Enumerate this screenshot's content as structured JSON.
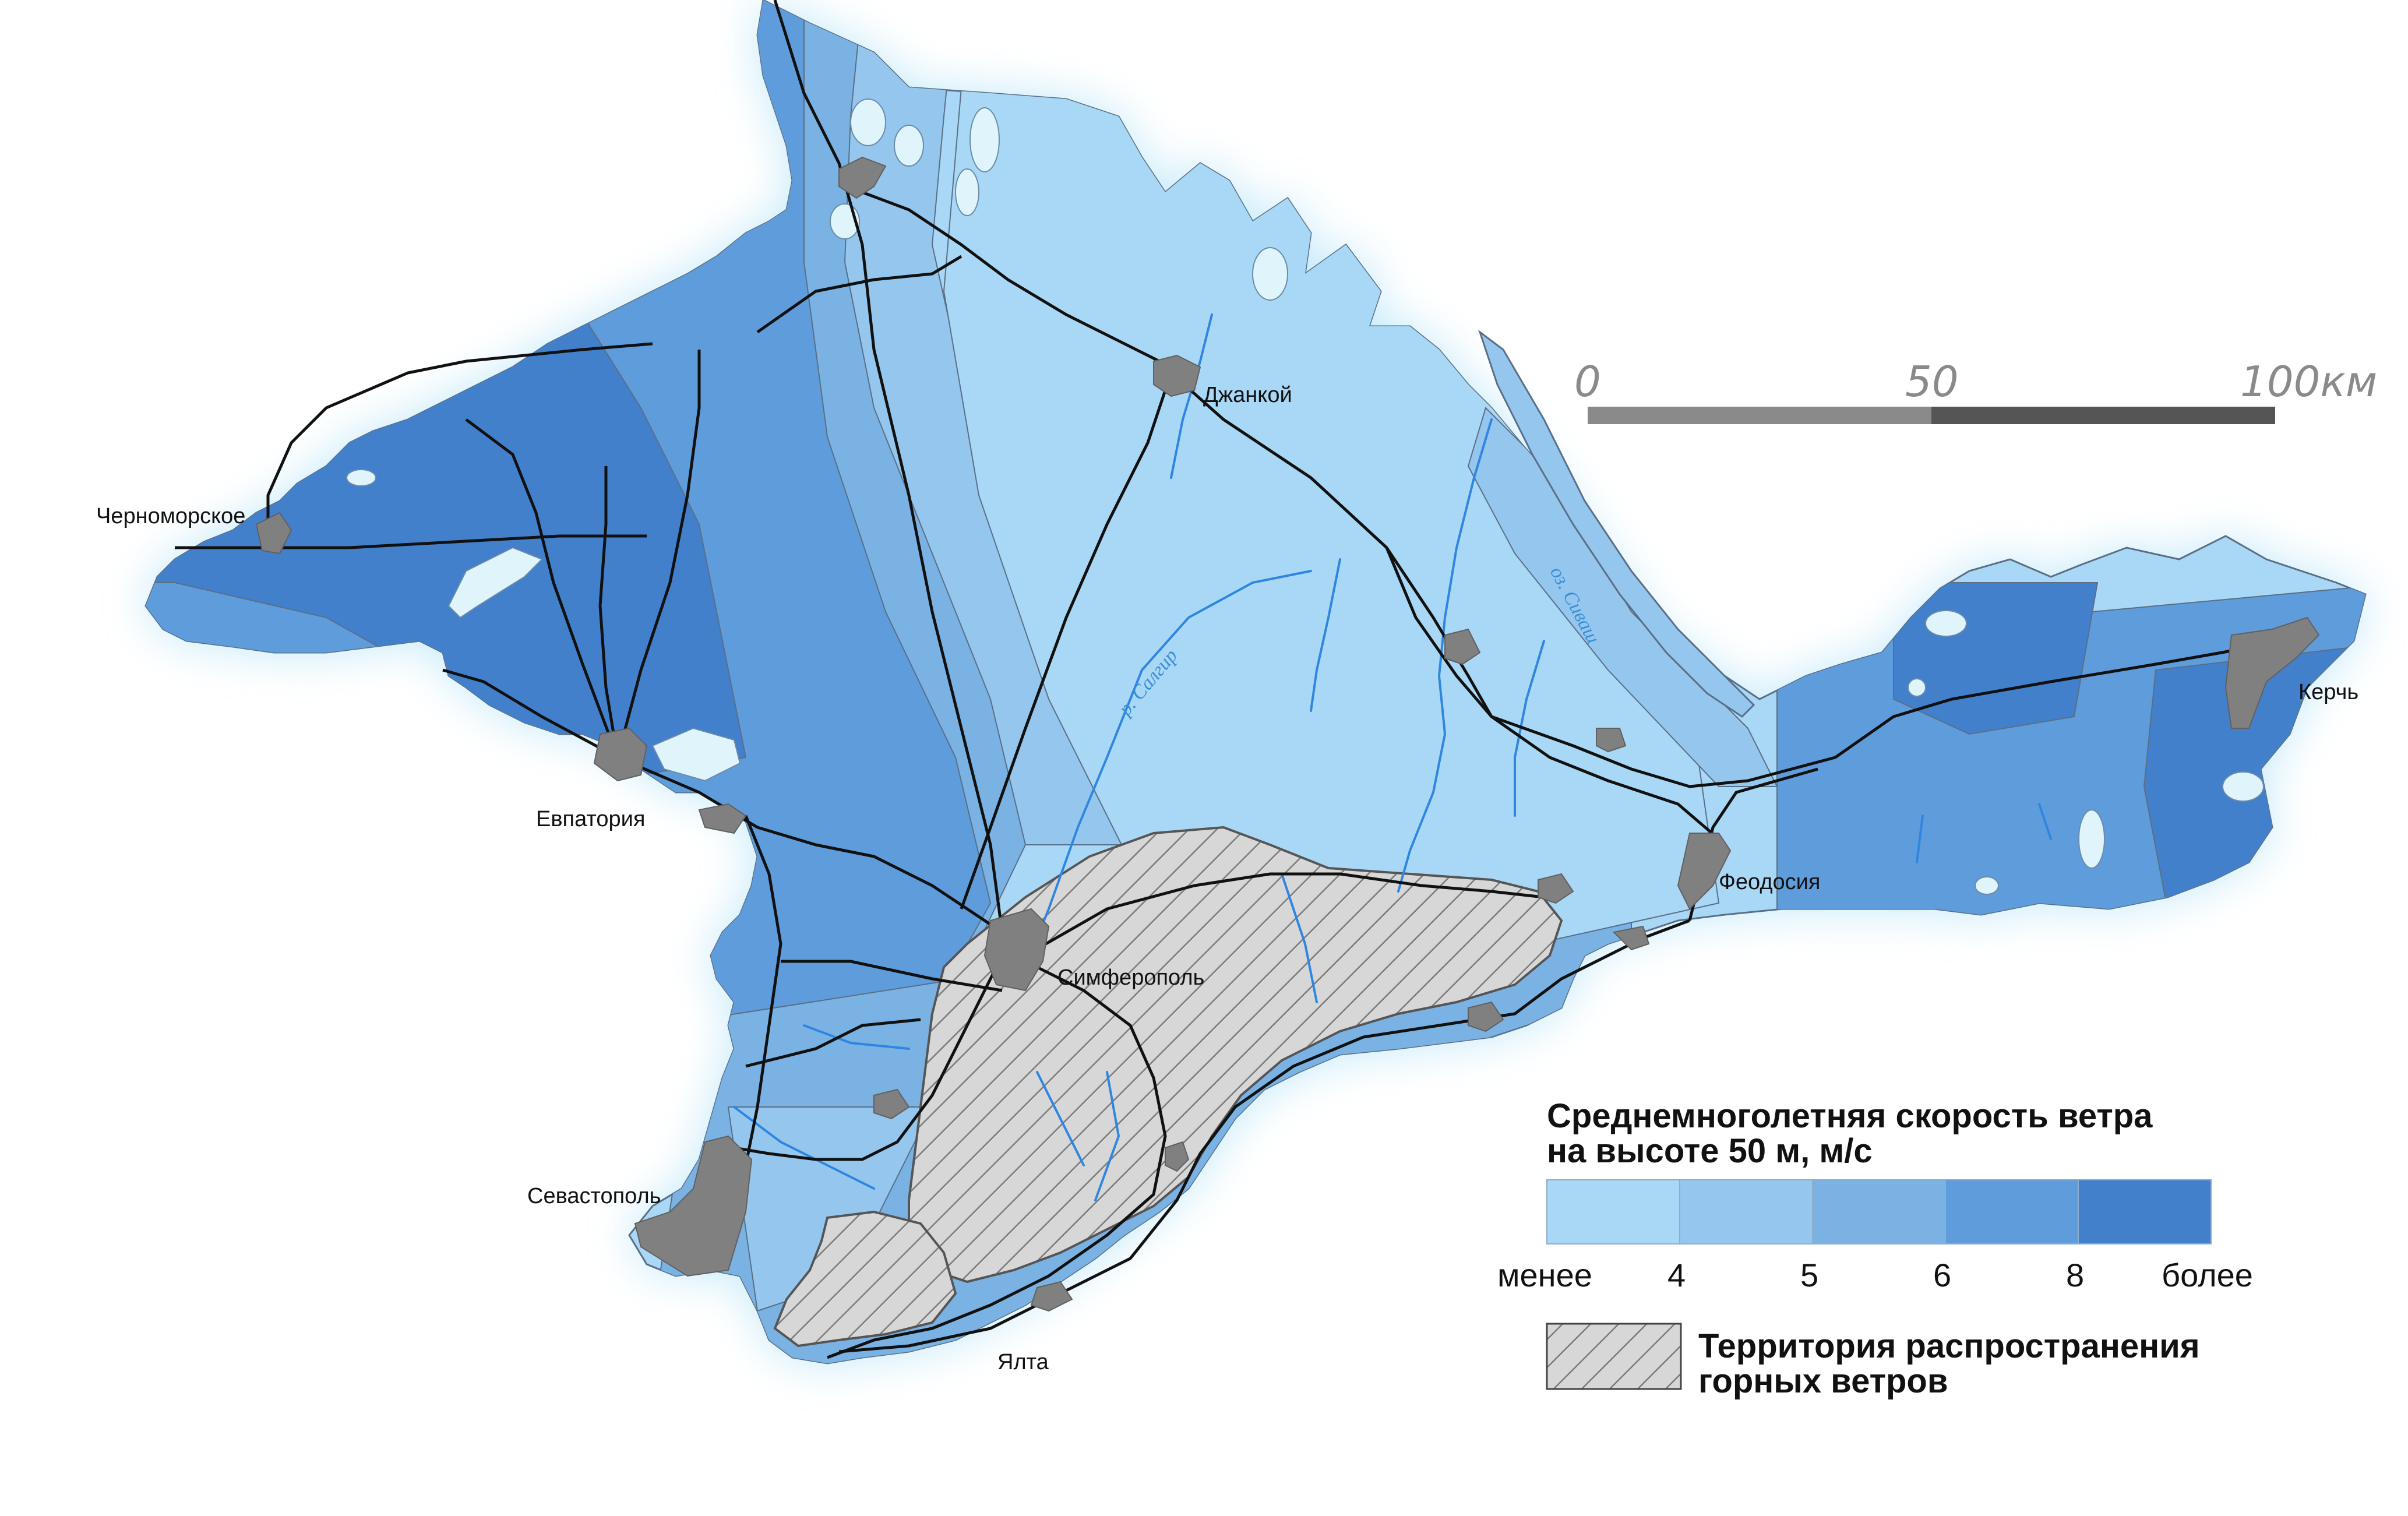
{
  "legend": {
    "title_line1": "Среднемноголетняя скорость ветра",
    "title_line2": "на высоте 50 м, м/с",
    "classes": [
      {
        "color": "#a9d8f6"
      },
      {
        "color": "#95c7ee"
      },
      {
        "color": "#7ab2e4"
      },
      {
        "color": "#5f9cdb"
      },
      {
        "color": "#4380cc"
      }
    ],
    "ticks": [
      "менее",
      "4",
      "5",
      "6",
      "8",
      "более"
    ],
    "hatch_label_line1": "Территория распространения",
    "hatch_label_line2": "горных ветров"
  },
  "scale_bar": {
    "labels": [
      "0",
      "50",
      "100км"
    ]
  },
  "cities": [
    {
      "name": "Джанкой"
    },
    {
      "name": "Черноморское"
    },
    {
      "name": "Евпатория"
    },
    {
      "name": "Симферополь"
    },
    {
      "name": "Феодосия"
    },
    {
      "name": "Керчь"
    },
    {
      "name": "Севастополь"
    },
    {
      "name": "Ялта"
    }
  ],
  "water_labels": {
    "sivash": "оз. Сиваш",
    "salgir": "р. Салгир"
  },
  "colors": {
    "city": "#808080",
    "roads": "#111111",
    "rivers": "#2f86e0",
    "water": "#dff4fb",
    "hatch_fill": "#d7d7d7",
    "hatch_line": "#7a7a7a"
  }
}
